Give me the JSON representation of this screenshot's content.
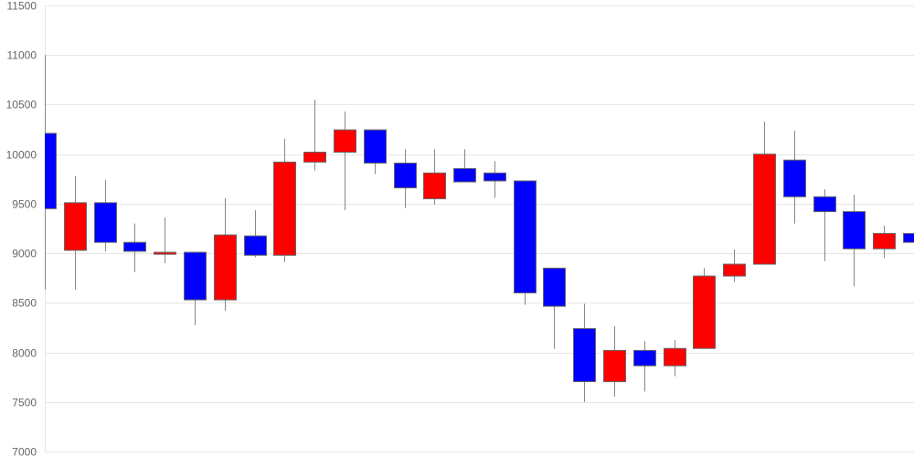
{
  "chart_data": {
    "type": "candlestick",
    "title": "",
    "xlabel": "",
    "ylabel": "",
    "ylim": [
      7000,
      11500
    ],
    "y_ticks": [
      "7000",
      "7500",
      "8000",
      "8500",
      "9000",
      "9500",
      "10000",
      "10500",
      "11000",
      "11500"
    ],
    "grid": true,
    "colors": {
      "up": "#ff0000",
      "down": "#0000ff",
      "wick": "#888888",
      "grid": "#e6e6e6",
      "tick_text": "#666666"
    },
    "candles": [
      {
        "open": 10210,
        "high": 11000,
        "low": 8635,
        "close": 9450
      },
      {
        "open": 9030,
        "high": 9780,
        "low": 8635,
        "close": 9510
      },
      {
        "open": 9510,
        "high": 9740,
        "low": 9020,
        "close": 9110
      },
      {
        "open": 9110,
        "high": 9300,
        "low": 8810,
        "close": 9020
      },
      {
        "open": 8990,
        "high": 9360,
        "low": 8900,
        "close": 9010
      },
      {
        "open": 9010,
        "high": 9010,
        "low": 8275,
        "close": 8530
      },
      {
        "open": 8530,
        "high": 9555,
        "low": 8420,
        "close": 9185
      },
      {
        "open": 9175,
        "high": 9435,
        "low": 8960,
        "close": 8980
      },
      {
        "open": 8980,
        "high": 10155,
        "low": 8910,
        "close": 9920
      },
      {
        "open": 9920,
        "high": 10550,
        "low": 9835,
        "close": 10020
      },
      {
        "open": 10020,
        "high": 10430,
        "low": 9435,
        "close": 10245
      },
      {
        "open": 10245,
        "high": 10250,
        "low": 9800,
        "close": 9910
      },
      {
        "open": 9910,
        "high": 10050,
        "low": 9455,
        "close": 9660
      },
      {
        "open": 9550,
        "high": 10050,
        "low": 9490,
        "close": 9810
      },
      {
        "open": 9855,
        "high": 10050,
        "low": 9720,
        "close": 9720
      },
      {
        "open": 9810,
        "high": 9930,
        "low": 9560,
        "close": 9730
      },
      {
        "open": 9730,
        "high": 9730,
        "low": 8480,
        "close": 8600
      },
      {
        "open": 8850,
        "high": 8850,
        "low": 8035,
        "close": 8465
      },
      {
        "open": 8240,
        "high": 8490,
        "low": 7500,
        "close": 7705
      },
      {
        "open": 7705,
        "high": 8265,
        "low": 7555,
        "close": 8020
      },
      {
        "open": 8020,
        "high": 8115,
        "low": 7605,
        "close": 7865
      },
      {
        "open": 7865,
        "high": 8125,
        "low": 7760,
        "close": 8040
      },
      {
        "open": 8040,
        "high": 8850,
        "low": 8040,
        "close": 8770
      },
      {
        "open": 8770,
        "high": 9040,
        "low": 8710,
        "close": 8890
      },
      {
        "open": 8890,
        "high": 10330,
        "low": 8890,
        "close": 10000
      },
      {
        "open": 9940,
        "high": 10235,
        "low": 9300,
        "close": 9570
      },
      {
        "open": 9570,
        "high": 9645,
        "low": 8920,
        "close": 9420
      },
      {
        "open": 9420,
        "high": 9590,
        "low": 8665,
        "close": 9045
      },
      {
        "open": 9045,
        "high": 9280,
        "low": 8950,
        "close": 9200
      },
      {
        "open": 9200,
        "high": 9405,
        "low": 8795,
        "close": 9110
      }
    ]
  }
}
